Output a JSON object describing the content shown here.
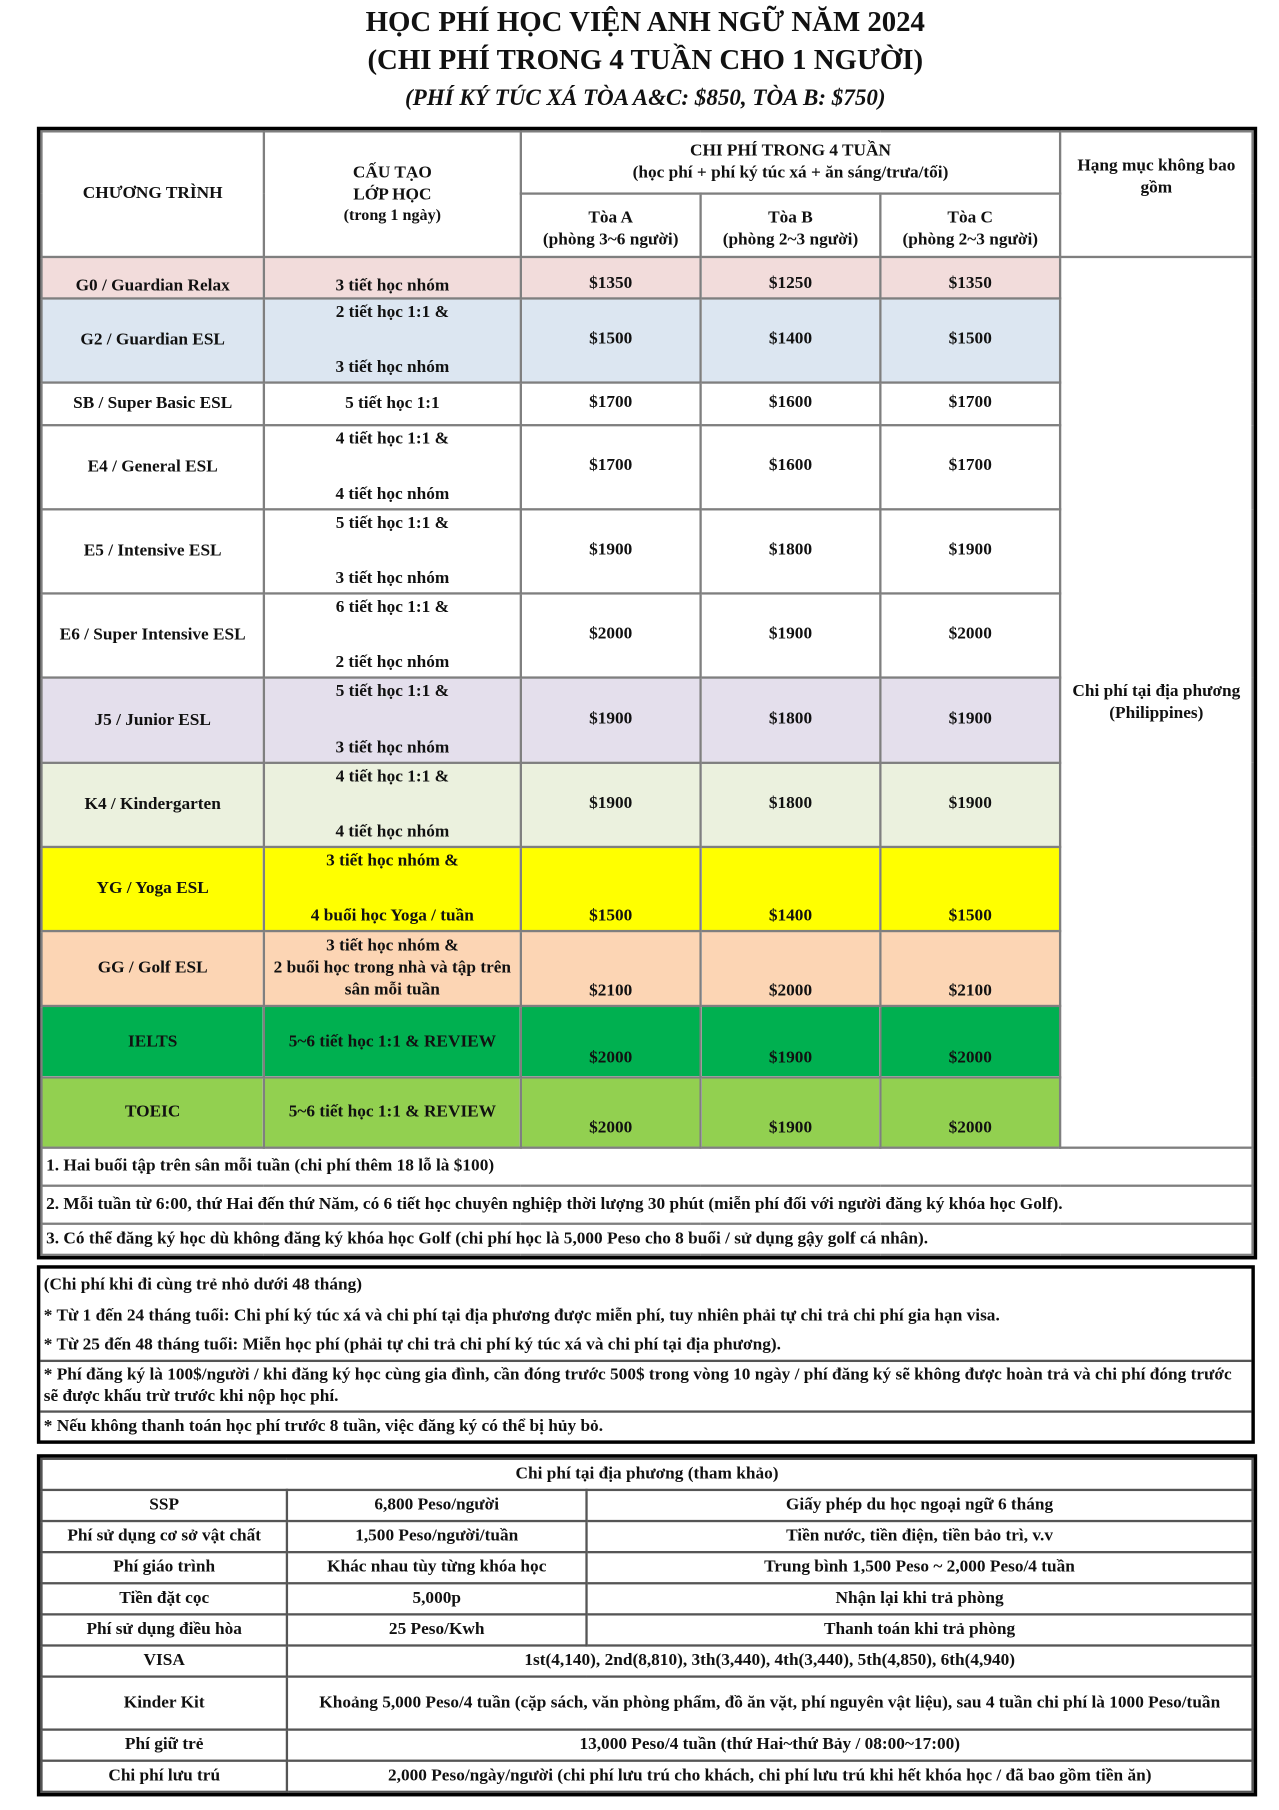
{
  "title": {
    "line1": "HỌC PHÍ HỌC VIỆN ANH NGỮ NĂM 2024",
    "line2": "(CHI PHÍ TRONG 4 TUẦN CHO 1 NGƯỜI)",
    "line3": "(PHÍ KÝ TÚC XÁ TÒA A&C: $850, TÒA B: $750)"
  },
  "header": {
    "program": "CHƯƠNG TRÌNH",
    "structure": [
      "CẤU TẠO",
      "LỚP HỌC",
      "(trong 1 ngày)"
    ],
    "cost_title": "CHI PHÍ TRONG 4 TUẦN",
    "cost_sub": "(học phí + phí ký túc xá + ăn sáng/trưa/tối)",
    "buildings": [
      {
        "name": "Tòa A",
        "room": "(phòng 3~6 người)"
      },
      {
        "name": "Tòa B",
        "room": "(phòng 2~3 người)"
      },
      {
        "name": "Tòa C",
        "room": "(phòng 2~3 người)"
      }
    ],
    "excluded": "Hạng mục không bao gồm"
  },
  "excluded_value": "Chi phí tại địa phương (Philippines)",
  "programs": [
    {
      "name": "G0 / Guardian Relax",
      "structure": [
        "3 tiết học nhóm"
      ],
      "a": "$1350",
      "b": "$1250",
      "c": "$1350",
      "color": "#f2dcdb"
    },
    {
      "name": "G2 / Guardian ESL",
      "structure": [
        "2 tiết học 1:1 &",
        "3 tiết học nhóm"
      ],
      "a": "$1500",
      "b": "$1400",
      "c": "$1500",
      "color": "#dce6f1"
    },
    {
      "name": "SB / Super Basic ESL",
      "structure": [
        "5 tiết học 1:1"
      ],
      "a": "$1700",
      "b": "$1600",
      "c": "$1700",
      "color": "#ffffff"
    },
    {
      "name": "E4 / General ESL",
      "structure": [
        "4 tiết học 1:1 &",
        "4 tiết học nhóm"
      ],
      "a": "$1700",
      "b": "$1600",
      "c": "$1700",
      "color": "#ffffff"
    },
    {
      "name": "E5 / Intensive ESL",
      "structure": [
        "5 tiết học 1:1 &",
        "3 tiết học nhóm"
      ],
      "a": "$1900",
      "b": "$1800",
      "c": "$1900",
      "color": "#ffffff"
    },
    {
      "name": "E6 / Super Intensive ESL",
      "structure": [
        "6 tiết học 1:1  &",
        "2 tiết học nhóm"
      ],
      "a": "$2000",
      "b": "$1900",
      "c": "$2000",
      "color": "#ffffff"
    },
    {
      "name": "J5 / Junior ESL",
      "structure": [
        "5 tiết học 1:1 &",
        "3 tiết học nhóm"
      ],
      "a": "$1900",
      "b": "$1800",
      "c": "$1900",
      "color": "#e4dfec"
    },
    {
      "name": "K4 / Kindergarten",
      "structure": [
        "4 tiết học 1:1 &",
        "4 tiết học nhóm"
      ],
      "a": "$1900",
      "b": "$1800",
      "c": "$1900",
      "color": "#ebf1de"
    },
    {
      "name": "YG / Yoga ESL",
      "structure": [
        "3 tiết học nhóm &",
        "4 buổi học Yoga / tuần"
      ],
      "a": "$1500",
      "b": "$1400",
      "c": "$1500",
      "color": "#ffff00"
    },
    {
      "name": "GG / Golf ESL",
      "structure": [
        "3 tiết học nhóm &",
        "2 buổi học trong nhà và tập trên sân mỗi tuần"
      ],
      "a": "$2100",
      "b": "$2000",
      "c": "$2100",
      "color": "#fcd5b4"
    },
    {
      "name": "IELTS",
      "structure": [
        "5~6 tiết học 1:1 & REVIEW"
      ],
      "a": "$2000",
      "b": "$1900",
      "c": "$2000",
      "color": "#00b050"
    },
    {
      "name": "TOEIC",
      "structure": [
        "5~6 tiết học 1:1 & REVIEW"
      ],
      "a": "$2000",
      "b": "$1900",
      "c": "$2000",
      "color": "#92d050"
    }
  ],
  "golf_notes": [
    "1. Hai buổi tập trên sân mỗi tuần (chi phí thêm 18 lỗ là $100)",
    "2. Mỗi tuần từ 6:00, thứ Hai đến thứ Năm, có 6 tiết học chuyên nghiệp thời lượng 30 phút (miễn phí đối với người đăng ký khóa học Golf).",
    "3. Có thể đăng ký học dù không đăng ký khóa học Golf (chi phí học là 5,000 Peso cho 8 buổi / sử dụng gậy golf cá nhân)."
  ],
  "kids_notes": [
    "(Chi phí khi đi cùng trẻ nhỏ dưới 48 tháng)",
    "* Từ 1 đến 24 tháng tuổi: Chi phí ký túc xá và chi phí tại địa phương được miễn phí, tuy nhiên phải tự chi trả chi phí gia hạn visa.",
    "* Từ 25 đến 48 tháng tuổi: Miễn học phí (phải tự chi trả chi phí ký túc xá và chi phí tại địa phương).",
    "* Phí đăng ký là 100$/người / khi đăng ký học cùng gia đình, cần đóng trước 500$ trong vòng 10 ngày / phí đăng ký sẽ không được hoàn trả và chi phí đóng trước sẽ được khấu trừ trước khi nộp học phí.",
    "* Nếu không thanh toán học phí trước 8 tuần, việc đăng ký có thể bị hủy bỏ."
  ],
  "local": {
    "title": "Chi phí tại địa phương (tham khảo)",
    "rows3": [
      {
        "item": "SSP",
        "cost": "6,800 Peso/người",
        "note": "Giấy phép du học ngoại ngữ 6 tháng"
      },
      {
        "item": "Phí sử dụng cơ sở vật chất",
        "cost": "1,500 Peso/người/tuần",
        "note": "Tiền nước, tiền điện, tiền bảo trì, v.v"
      },
      {
        "item": "Phí giáo trình",
        "cost": "Khác nhau tùy từng khóa học",
        "note": "Trung bình 1,500 Peso ~ 2,000 Peso/4 tuần"
      },
      {
        "item": "Tiền đặt cọc",
        "cost": "5,000p",
        "note": "Nhận lại khi trả phòng"
      },
      {
        "item": "Phí sử dụng điều hòa",
        "cost": "25 Peso/Kwh",
        "note": "Thanh toán khi trả phòng"
      }
    ],
    "rows2": [
      {
        "item": "VISA",
        "value": "1st(4,140), 2nd(8,810), 3th(3,440), 4th(3,440), 5th(4,850), 6th(4,940)"
      },
      {
        "item": "Kinder Kit",
        "value": "Khoảng 5,000 Peso/4 tuần (cặp sách, văn phòng phẩm, đồ ăn vặt, phí nguyên vật liệu), sau 4 tuần chi phí là 1000 Peso/tuần"
      },
      {
        "item": "Phí giữ trẻ",
        "value": "13,000 Peso/4 tuần (thứ Hai~thứ Bảy / 08:00~17:00)"
      },
      {
        "item": "Chi phí lưu trú",
        "value": "2,000 Peso/ngày/người (chi phí lưu trú cho khách, chi phí lưu trú khi hết khóa học / đã bao gồm tiền ăn)"
      }
    ]
  }
}
